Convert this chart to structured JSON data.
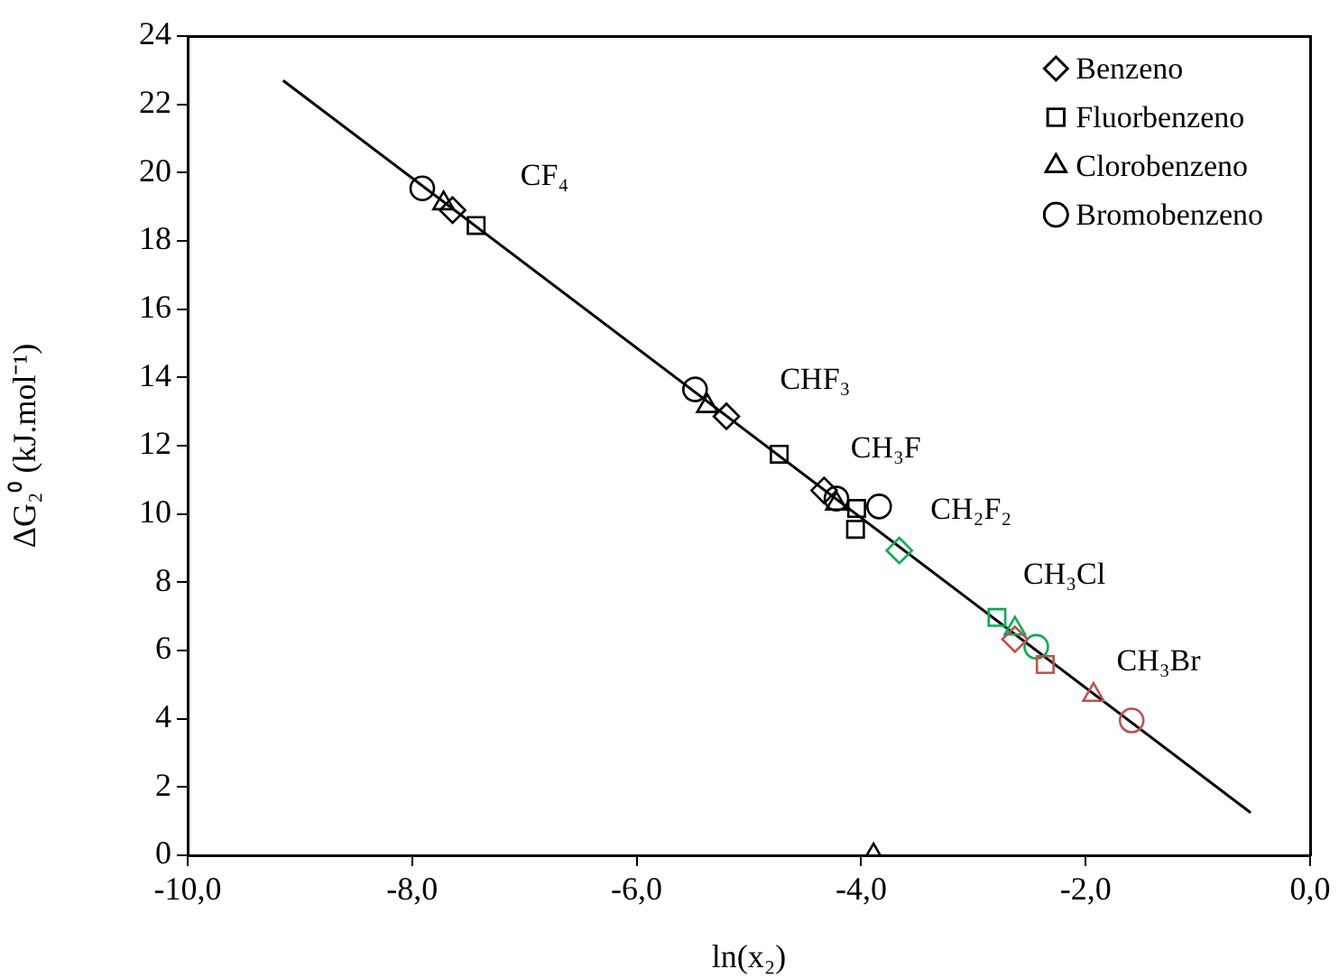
{
  "chart_data": {
    "type": "scatter",
    "xlabel": "ln(x₂)",
    "ylabel": "ΔG₂⁰ (kJ.mol⁻¹)",
    "xlim": [
      -10,
      0
    ],
    "xticks": [
      {
        "value": -10,
        "label": "-10,0"
      },
      {
        "value": -8,
        "label": "-8,0"
      },
      {
        "value": -6,
        "label": "-6,0"
      },
      {
        "value": -4,
        "label": "-4,0"
      },
      {
        "value": -2,
        "label": "-2,0"
      },
      {
        "value": 0,
        "label": "0,0"
      }
    ],
    "ylim": [
      0,
      24
    ],
    "yticks": [
      0,
      2,
      4,
      6,
      8,
      10,
      12,
      14,
      16,
      18,
      20,
      22,
      24
    ],
    "grid": false,
    "legend": "top right",
    "series": [
      {
        "name": "Benzeno",
        "marker": "diamond",
        "color": "#000000",
        "x": [
          -7.64,
          -5.2,
          -4.33,
          -3.66,
          -2.63
        ],
        "values": [
          18.9,
          12.86,
          10.69,
          8.93,
          6.33
        ],
        "colors": [
          "#000000",
          "#000000",
          "#000000",
          "#00b050",
          "#c0504d"
        ]
      },
      {
        "name": "Fluorbenzeno",
        "marker": "square",
        "color": "#000000",
        "x": [
          -7.43,
          -4.73,
          -4.04,
          -4.05,
          -2.79,
          -2.36
        ],
        "values": [
          18.45,
          11.75,
          10.16,
          9.55,
          6.97,
          5.59
        ],
        "colors": [
          "#000000",
          "#000000",
          "#000000",
          "#000000",
          "#00b050",
          "#c0504d"
        ]
      },
      {
        "name": "Clorobenzeno",
        "marker": "triangle",
        "color": "#000000",
        "x": [
          -7.72,
          -5.37,
          -4.22,
          -3.89,
          -2.63,
          -1.93
        ],
        "values": [
          19.1,
          13.16,
          10.3,
          0,
          6.64,
          4.7
        ],
        "colors": [
          "#000000",
          "#000000",
          "#000000",
          "#000000",
          "#00b050",
          "#c0504d"
        ]
      },
      {
        "name": "Bromobenzeno",
        "marker": "circle",
        "color": "#000000",
        "x": [
          -7.91,
          -5.48,
          -4.22,
          -3.84,
          -2.44,
          -1.59
        ],
        "values": [
          19.54,
          13.65,
          10.45,
          10.22,
          6.11,
          3.95
        ],
        "colors": [
          "#000000",
          "#000000",
          "#000000",
          "#000000",
          "#00b050",
          "#c0504d"
        ]
      },
      {
        "type": "line",
        "marker": "none",
        "color": "#000000",
        "x": [
          -9.15,
          -0.53
        ],
        "values": [
          22.7,
          1.25
        ]
      }
    ],
    "annotations": [
      "CF₄",
      "CHF₃",
      "CH₃F",
      "CH₂F₂",
      "CH₃Cl",
      "CH₃Br"
    ]
  }
}
